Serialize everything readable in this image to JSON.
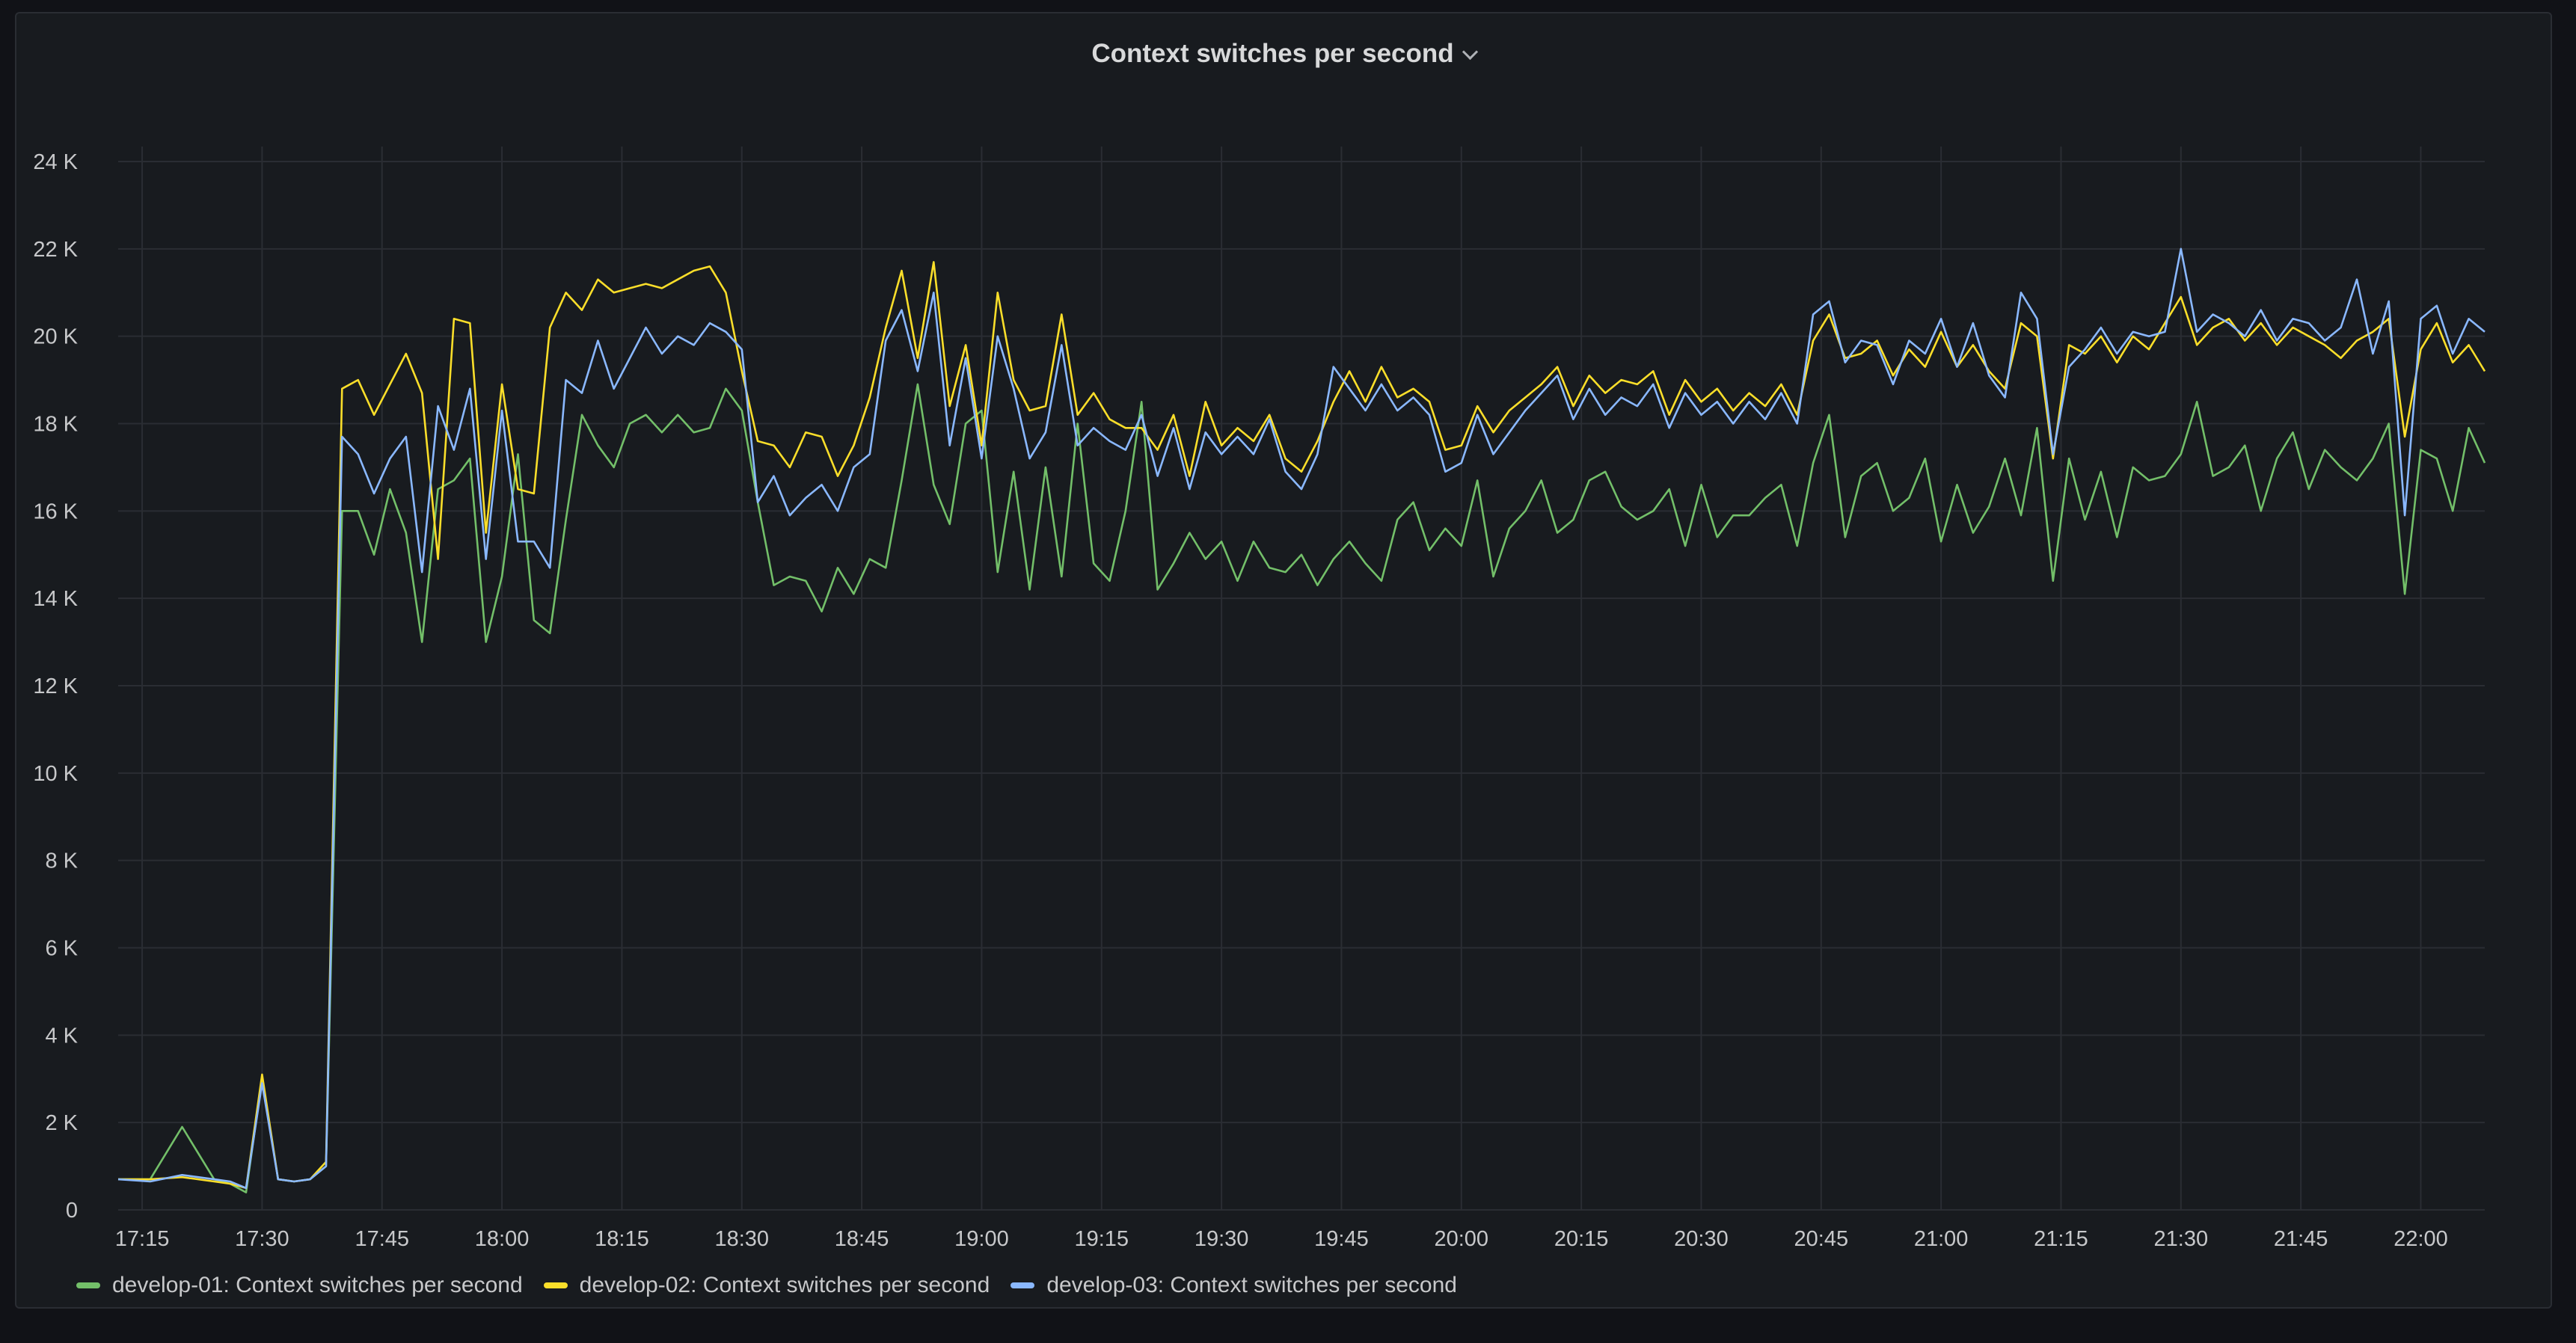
{
  "panel": {
    "title": "Context switches per second",
    "menu_icon": "chevron-down-icon"
  },
  "chart_data": {
    "type": "line",
    "title": "Context switches per second",
    "xlabel": "",
    "ylabel": "",
    "ylim": [
      0,
      24000
    ],
    "yticks": [
      0,
      2000,
      4000,
      6000,
      8000,
      10000,
      12000,
      14000,
      16000,
      18000,
      20000,
      22000,
      24000
    ],
    "ytick_labels": [
      "0",
      "2 K",
      "4 K",
      "6 K",
      "8 K",
      "10 K",
      "12 K",
      "14 K",
      "16 K",
      "18 K",
      "20 K",
      "22 K",
      "24 K"
    ],
    "xlim": [
      "17:12",
      "22:08"
    ],
    "xtick_labels": [
      "17:15",
      "17:30",
      "17:45",
      "18:00",
      "18:15",
      "18:30",
      "18:45",
      "19:00",
      "19:15",
      "19:30",
      "19:45",
      "20:00",
      "20:15",
      "20:30",
      "20:45",
      "21:00",
      "21:15",
      "21:30",
      "21:45",
      "22:00"
    ],
    "grid": true,
    "legend_position": "bottom-left",
    "x": [
      "17:12",
      "17:16",
      "17:20",
      "17:24",
      "17:26",
      "17:28",
      "17:30",
      "17:32",
      "17:34",
      "17:36",
      "17:38",
      "17:40",
      "17:42",
      "17:44",
      "17:46",
      "17:48",
      "17:50",
      "17:52",
      "17:54",
      "17:56",
      "17:58",
      "18:00",
      "18:02",
      "18:04",
      "18:06",
      "18:08",
      "18:10",
      "18:12",
      "18:14",
      "18:16",
      "18:18",
      "18:20",
      "18:22",
      "18:24",
      "18:26",
      "18:28",
      "18:30",
      "18:32",
      "18:34",
      "18:36",
      "18:38",
      "18:40",
      "18:42",
      "18:44",
      "18:46",
      "18:48",
      "18:50",
      "18:52",
      "18:54",
      "18:56",
      "18:58",
      "19:00",
      "19:02",
      "19:04",
      "19:06",
      "19:08",
      "19:10",
      "19:12",
      "19:14",
      "19:16",
      "19:18",
      "19:20",
      "19:22",
      "19:24",
      "19:26",
      "19:28",
      "19:30",
      "19:32",
      "19:34",
      "19:36",
      "19:38",
      "19:40",
      "19:42",
      "19:44",
      "19:46",
      "19:48",
      "19:50",
      "19:52",
      "19:54",
      "19:56",
      "19:58",
      "20:00",
      "20:02",
      "20:04",
      "20:06",
      "20:08",
      "20:10",
      "20:12",
      "20:14",
      "20:16",
      "20:18",
      "20:20",
      "20:22",
      "20:24",
      "20:26",
      "20:28",
      "20:30",
      "20:32",
      "20:34",
      "20:36",
      "20:38",
      "20:40",
      "20:42",
      "20:44",
      "20:46",
      "20:48",
      "20:50",
      "20:52",
      "20:54",
      "20:56",
      "20:58",
      "21:00",
      "21:02",
      "21:04",
      "21:06",
      "21:08",
      "21:10",
      "21:12",
      "21:14",
      "21:16",
      "21:18",
      "21:20",
      "21:22",
      "21:24",
      "21:26",
      "21:28",
      "21:30",
      "21:32",
      "21:34",
      "21:36",
      "21:38",
      "21:40",
      "21:42",
      "21:44",
      "21:46",
      "21:48",
      "21:50",
      "21:52",
      "21:54",
      "21:56",
      "21:58",
      "22:00",
      "22:02",
      "22:04",
      "22:06",
      "22:08"
    ],
    "series": [
      {
        "name": "develop-01: Context switches per second",
        "color": "#73bf69",
        "values": [
          700,
          700,
          1900,
          700,
          600,
          400,
          3000,
          700,
          650,
          700,
          1000,
          16000,
          16000,
          15000,
          16500,
          15500,
          13000,
          16500,
          16700,
          17200,
          13000,
          14500,
          17300,
          13500,
          13200,
          15800,
          18200,
          17500,
          17000,
          18000,
          18200,
          17800,
          18200,
          17800,
          17900,
          18800,
          18300,
          16200,
          14300,
          14500,
          14400,
          13700,
          14700,
          14100,
          14900,
          14700,
          16700,
          18900,
          16600,
          15700,
          18000,
          18300,
          14600,
          16900,
          14200,
          17000,
          14500,
          18000,
          14800,
          14400,
          16000,
          18500,
          14200,
          14800,
          15500,
          14900,
          15300,
          14400,
          15300,
          14700,
          14600,
          15000,
          14300,
          14900,
          15300,
          14800,
          14400,
          15800,
          16200,
          15100,
          15600,
          15200,
          16700,
          14500,
          15600,
          16000,
          16700,
          15500,
          15800,
          16700,
          16900,
          16100,
          15800,
          16000,
          16500,
          15200,
          16600,
          15400,
          15900,
          15900,
          16300,
          16600,
          15200,
          17100,
          18200,
          15400,
          16800,
          17100,
          16000,
          16300,
          17200,
          15300,
          16600,
          15500,
          16100,
          17200,
          15900,
          17900,
          14400,
          17200,
          15800,
          16900,
          15400,
          17000,
          16700,
          16800,
          17300,
          18500,
          16800,
          17000,
          17500,
          16000,
          17200,
          17800,
          16500,
          17400,
          17000,
          16700,
          17200,
          18000,
          14100,
          17400,
          17200,
          16000,
          17900,
          17100
        ]
      },
      {
        "name": "develop-02: Context switches per second",
        "color": "#fade2a",
        "values": [
          700,
          700,
          750,
          650,
          600,
          500,
          3100,
          700,
          650,
          700,
          1100,
          18800,
          19000,
          18200,
          18900,
          19600,
          18700,
          14900,
          20400,
          20300,
          15500,
          18900,
          16500,
          16400,
          20200,
          21000,
          20600,
          21300,
          21000,
          21100,
          21200,
          21100,
          21300,
          21500,
          21600,
          21000,
          19200,
          17600,
          17500,
          17000,
          17800,
          17700,
          16800,
          17500,
          18600,
          20200,
          21500,
          19500,
          21700,
          18400,
          19800,
          17500,
          21000,
          19000,
          18300,
          18400,
          20500,
          18200,
          18700,
          18100,
          17900,
          17900,
          17400,
          18200,
          16800,
          18500,
          17500,
          17900,
          17600,
          18200,
          17200,
          16900,
          17600,
          18500,
          19200,
          18500,
          19300,
          18600,
          18800,
          18500,
          17400,
          17500,
          18400,
          17800,
          18300,
          18600,
          18900,
          19300,
          18400,
          19100,
          18700,
          19000,
          18900,
          19200,
          18200,
          19000,
          18500,
          18800,
          18300,
          18700,
          18400,
          18900,
          18200,
          19900,
          20500,
          19500,
          19600,
          19900,
          19100,
          19700,
          19300,
          20100,
          19300,
          19800,
          19200,
          18800,
          20300,
          20000,
          17200,
          19800,
          19600,
          20000,
          19400,
          20000,
          19700,
          20300,
          20900,
          19800,
          20200,
          20400,
          19900,
          20300,
          19800,
          20200,
          20000,
          19800,
          19500,
          19900,
          20100,
          20400,
          17700,
          19700,
          20300,
          19400,
          19800,
          19200
        ]
      },
      {
        "name": "develop-03: Context switches per second",
        "color": "#8ab8ff",
        "values": [
          700,
          650,
          800,
          700,
          650,
          500,
          2900,
          700,
          650,
          700,
          1000,
          17700,
          17300,
          16400,
          17200,
          17700,
          14600,
          18400,
          17400,
          18800,
          14900,
          18300,
          15300,
          15300,
          14700,
          19000,
          18700,
          19900,
          18800,
          19500,
          20200,
          19600,
          20000,
          19800,
          20300,
          20100,
          19700,
          16200,
          16800,
          15900,
          16300,
          16600,
          16000,
          17000,
          17300,
          19900,
          20600,
          19200,
          21000,
          17500,
          19500,
          17200,
          20000,
          18800,
          17200,
          17800,
          19800,
          17500,
          17900,
          17600,
          17400,
          18200,
          16800,
          17900,
          16500,
          17800,
          17300,
          17700,
          17300,
          18100,
          16900,
          16500,
          17300,
          19300,
          18800,
          18300,
          18900,
          18300,
          18600,
          18200,
          16900,
          17100,
          18200,
          17300,
          17800,
          18300,
          18700,
          19100,
          18100,
          18800,
          18200,
          18600,
          18400,
          18900,
          17900,
          18700,
          18200,
          18500,
          18000,
          18500,
          18100,
          18700,
          18000,
          20500,
          20800,
          19400,
          19900,
          19800,
          18900,
          19900,
          19600,
          20400,
          19300,
          20300,
          19100,
          18600,
          21000,
          20400,
          17300,
          19300,
          19700,
          20200,
          19600,
          20100,
          20000,
          20100,
          22000,
          20100,
          20500,
          20300,
          20000,
          20600,
          19900,
          20400,
          20300,
          19900,
          20200,
          21300,
          19600,
          20800,
          15900,
          20400,
          20700,
          19600,
          20400,
          20100
        ]
      }
    ]
  }
}
